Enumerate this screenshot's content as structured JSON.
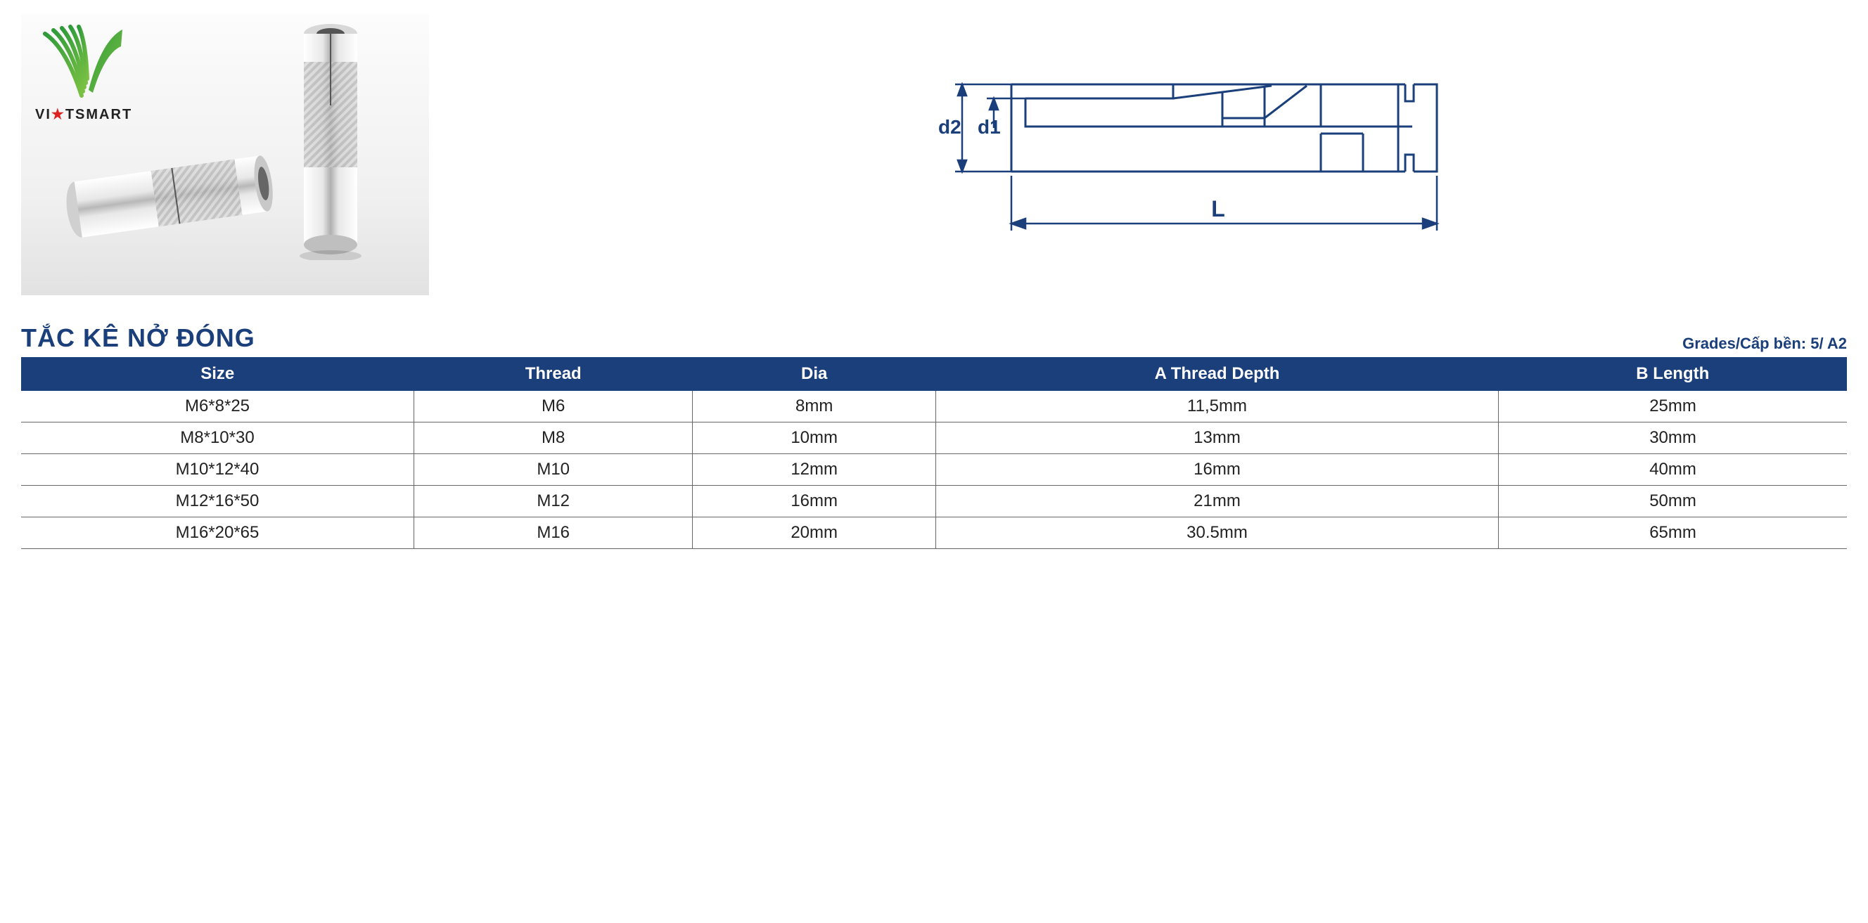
{
  "logo": {
    "brand_left": "VI",
    "brand_right": "TSMART"
  },
  "diagram": {
    "label_d2": "d2",
    "label_d1": "d1",
    "label_L": "L",
    "stroke": "#1a3f7a",
    "stroke_width": 3
  },
  "title": "TẮC KÊ NỞ ĐÓNG",
  "grades_label": "Grades/Cấp bền: 5/ A2",
  "table": {
    "header_bg": "#1a3f7a",
    "header_color": "#ffffff",
    "border_color": "#666666",
    "columns": [
      "Size",
      "Thread",
      "Dia",
      "A Thread Depth",
      "B Length"
    ],
    "rows": [
      [
        "M6*8*25",
        "M6",
        "8mm",
        "11,5mm",
        "25mm"
      ],
      [
        "M8*10*30",
        "M8",
        "10mm",
        "13mm",
        "30mm"
      ],
      [
        "M10*12*40",
        "M10",
        "12mm",
        "16mm",
        "40mm"
      ],
      [
        "M12*16*50",
        "M12",
        "16mm",
        "21mm",
        "50mm"
      ],
      [
        "M16*20*65",
        "M16",
        "20mm",
        "30.5mm",
        "65mm"
      ]
    ]
  }
}
